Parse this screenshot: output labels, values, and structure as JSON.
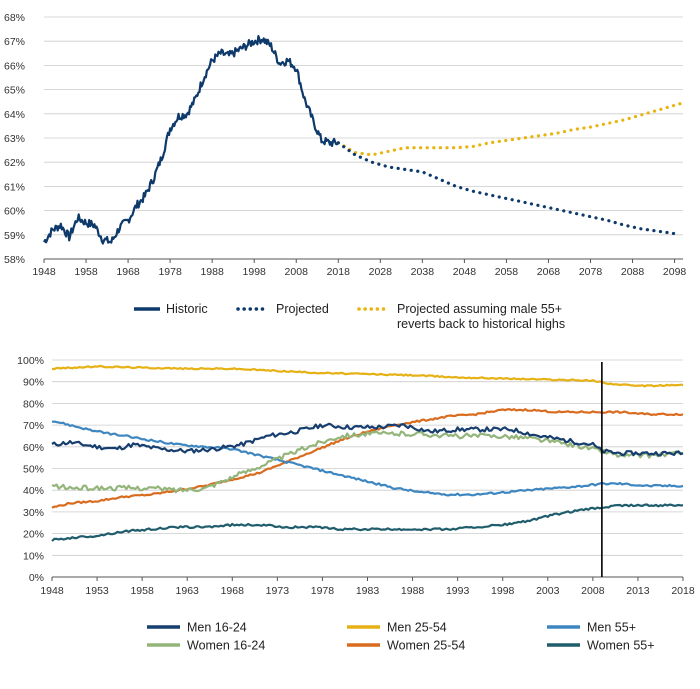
{
  "colors": {
    "historic": "#0e3a6b",
    "projected": "#0e3a6b",
    "projected_alt": "#e8b40f",
    "men_16_24": "#163e6f",
    "men_25_54": "#e6b115",
    "men_55": "#3d86c0",
    "women_16_24": "#94b57a",
    "women_25_54": "#d96b1e",
    "women_55": "#1f5d6c",
    "grid": "#cccccc",
    "marker": "#000000"
  },
  "chart_data": [
    {
      "type": "line",
      "title": "",
      "xlabel": "",
      "ylabel": "",
      "xlim": [
        1948,
        2100
      ],
      "ylim": [
        58,
        68
      ],
      "xticks": [
        "1948",
        "1958",
        "1968",
        "1978",
        "1988",
        "1998",
        "2008",
        "2018",
        "2028",
        "2038",
        "2048",
        "2058",
        "2068",
        "2078",
        "2088",
        "2098"
      ],
      "yticks": [
        "58%",
        "59%",
        "60%",
        "61%",
        "62%",
        "63%",
        "64%",
        "65%",
        "66%",
        "67%",
        "68%"
      ],
      "grid": "horizontal",
      "legend_position": "bottom",
      "series": [
        {
          "name": "Historic",
          "style": "solid",
          "x": [
            1948,
            1950,
            1952,
            1954,
            1956,
            1958,
            1960,
            1962,
            1964,
            1966,
            1968,
            1970,
            1972,
            1974,
            1976,
            1978,
            1980,
            1982,
            1984,
            1986,
            1988,
            1990,
            1992,
            1994,
            1996,
            1998,
            2000,
            2002,
            2004,
            2006,
            2008,
            2010,
            2012,
            2014,
            2016,
            2018
          ],
          "y": [
            58.7,
            59.2,
            59.4,
            58.9,
            59.7,
            59.5,
            59.4,
            58.8,
            58.7,
            59.3,
            59.6,
            60.2,
            60.6,
            61.3,
            62.2,
            63.4,
            63.9,
            64.0,
            64.6,
            65.5,
            66.2,
            66.5,
            66.4,
            66.6,
            66.8,
            67.0,
            67.1,
            66.8,
            66.1,
            66.2,
            65.9,
            64.6,
            63.7,
            62.9,
            62.8,
            62.8
          ]
        },
        {
          "name": "Projected",
          "style": "dotted",
          "x": [
            2018,
            2022,
            2026,
            2030,
            2034,
            2038,
            2042,
            2046,
            2050,
            2054,
            2058,
            2062,
            2066,
            2070,
            2074,
            2078,
            2082,
            2086,
            2090,
            2094,
            2098
          ],
          "y": [
            62.8,
            62.3,
            62.0,
            61.8,
            61.7,
            61.6,
            61.3,
            61.0,
            60.8,
            60.65,
            60.5,
            60.35,
            60.2,
            60.05,
            59.9,
            59.75,
            59.6,
            59.4,
            59.25,
            59.15,
            59.05
          ]
        },
        {
          "name": "Projected assuming male 55+ reverts back to historical highs",
          "style": "dotted",
          "x": [
            2018,
            2022,
            2026,
            2030,
            2034,
            2038,
            2042,
            2046,
            2050,
            2054,
            2058,
            2062,
            2066,
            2070,
            2074,
            2078,
            2082,
            2086,
            2090,
            2094,
            2098,
            2100
          ],
          "y": [
            62.8,
            62.4,
            62.3,
            62.45,
            62.6,
            62.6,
            62.6,
            62.6,
            62.65,
            62.8,
            62.9,
            63.0,
            63.1,
            63.2,
            63.35,
            63.45,
            63.6,
            63.75,
            63.95,
            64.15,
            64.35,
            64.45
          ]
        }
      ]
    },
    {
      "type": "line",
      "title": "",
      "xlabel": "",
      "ylabel": "",
      "xlim": [
        1948,
        2018
      ],
      "ylim": [
        0,
        100
      ],
      "xticks": [
        "1948",
        "1953",
        "1958",
        "1963",
        "1968",
        "1973",
        "1978",
        "1983",
        "1988",
        "1993",
        "1998",
        "2003",
        "2008",
        "2013",
        "2018"
      ],
      "yticks": [
        "0%",
        "10%",
        "20%",
        "30%",
        "40%",
        "50%",
        "60%",
        "70%",
        "80%",
        "90%",
        "100%"
      ],
      "grid": "horizontal",
      "legend_position": "bottom",
      "vertical_marker_x": 2009,
      "series": [
        {
          "name": "Men 16-24",
          "x": [
            1948,
            1950,
            1953,
            1955,
            1957,
            1960,
            1963,
            1966,
            1969,
            1972,
            1975,
            1978,
            1981,
            1984,
            1987,
            1990,
            1993,
            1996,
            1999,
            2002,
            2005,
            2008,
            2009,
            2011,
            2013,
            2016,
            2018
          ],
          "y": [
            61,
            62,
            60,
            59,
            61,
            59,
            58,
            59,
            61,
            65,
            67,
            70,
            69,
            69,
            70,
            67,
            68,
            68,
            68,
            65,
            63,
            61,
            58,
            57,
            57,
            57,
            57
          ]
        },
        {
          "name": "Men 25-54",
          "x": [
            1948,
            1953,
            1958,
            1963,
            1968,
            1973,
            1978,
            1983,
            1988,
            1993,
            1998,
            2003,
            2008,
            2010,
            2013,
            2018
          ],
          "y": [
            96,
            97,
            96.5,
            96,
            96,
            95,
            94,
            93.5,
            93,
            92,
            91.5,
            91,
            90.5,
            89,
            88,
            88.5
          ]
        },
        {
          "name": "Men 55+",
          "x": [
            1948,
            1950,
            1953,
            1956,
            1959,
            1962,
            1965,
            1968,
            1971,
            1974,
            1977,
            1980,
            1983,
            1986,
            1989,
            1992,
            1995,
            1998,
            2001,
            2004,
            2007,
            2009,
            2011,
            2014,
            2018
          ],
          "y": [
            72,
            70,
            67,
            65,
            63,
            61,
            60,
            59,
            56,
            53,
            50,
            47,
            44,
            41,
            39,
            38,
            38,
            39,
            40,
            41,
            42,
            43,
            43,
            42,
            42
          ]
        },
        {
          "name": "Women 16-24",
          "x": [
            1948,
            1950,
            1953,
            1956,
            1959,
            1962,
            1965,
            1968,
            1971,
            1974,
            1977,
            1980,
            1983,
            1986,
            1989,
            1992,
            1995,
            1998,
            2001,
            2004,
            2007,
            2009,
            2011,
            2014,
            2018
          ],
          "y": [
            42,
            41,
            41,
            41,
            41,
            40,
            41,
            46,
            51,
            56,
            61,
            65,
            66,
            66,
            66,
            65,
            65,
            65,
            64,
            62,
            60,
            58,
            56,
            56,
            57
          ]
        },
        {
          "name": "Women 25-54",
          "x": [
            1948,
            1950,
            1953,
            1956,
            1959,
            1962,
            1965,
            1968,
            1971,
            1974,
            1977,
            1980,
            1983,
            1986,
            1989,
            1992,
            1995,
            1998,
            2001,
            2004,
            2007,
            2009,
            2011,
            2014,
            2018
          ],
          "y": [
            32,
            34,
            35,
            37,
            38,
            40,
            42,
            45,
            48,
            53,
            58,
            63,
            67,
            70,
            72,
            74,
            75,
            77,
            77,
            76,
            76,
            76,
            76,
            75,
            75
          ]
        },
        {
          "name": "Women 55+",
          "x": [
            1948,
            1950,
            1953,
            1956,
            1959,
            1962,
            1965,
            1968,
            1971,
            1974,
            1977,
            1980,
            1983,
            1986,
            1989,
            1992,
            1995,
            1998,
            2001,
            2004,
            2007,
            2009,
            2011,
            2014,
            2018
          ],
          "y": [
            17,
            18,
            19,
            21,
            22,
            23,
            23,
            24,
            24,
            23,
            23,
            22,
            22,
            22,
            22,
            22,
            23,
            24,
            26,
            29,
            31,
            32,
            33,
            33,
            33
          ]
        }
      ]
    }
  ]
}
